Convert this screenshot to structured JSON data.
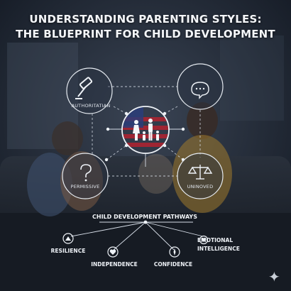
{
  "title": {
    "line1": "UNDERSTANDING PARENTING STYLES:",
    "line2": "THE BLUEPRINT FOR CHILD DEVELOPMENT"
  },
  "styles": [
    {
      "label": "AUTHORITATIAN",
      "icon": "gavel-icon"
    },
    {
      "label": "",
      "icon": "speech-bubble-icon"
    },
    {
      "label": "PERMISSIVE",
      "icon": "question-mark-icon"
    },
    {
      "label": "UNINOVED",
      "icon": "scales-icon"
    }
  ],
  "center_icon": "family-icon",
  "pathways": {
    "title": "CHILD DEVELOPMENT PATHWAYS",
    "outcomes": [
      {
        "label": "RESILIENCE",
        "icon": "triangle-icon"
      },
      {
        "label": "INDEPENDENCE",
        "icon": "heart-icon"
      },
      {
        "label": "CONFIDENCE",
        "icon": "compass-icon"
      },
      {
        "label_line1": "EMOTIONAL",
        "label_line2": "INTELLIGENCE",
        "icon": "heart-icon"
      }
    ]
  },
  "colors": {
    "background": "#1c2431",
    "line": "#d6dde7",
    "flag_red": "#b3222f",
    "flag_blue": "#2b3d7a"
  }
}
